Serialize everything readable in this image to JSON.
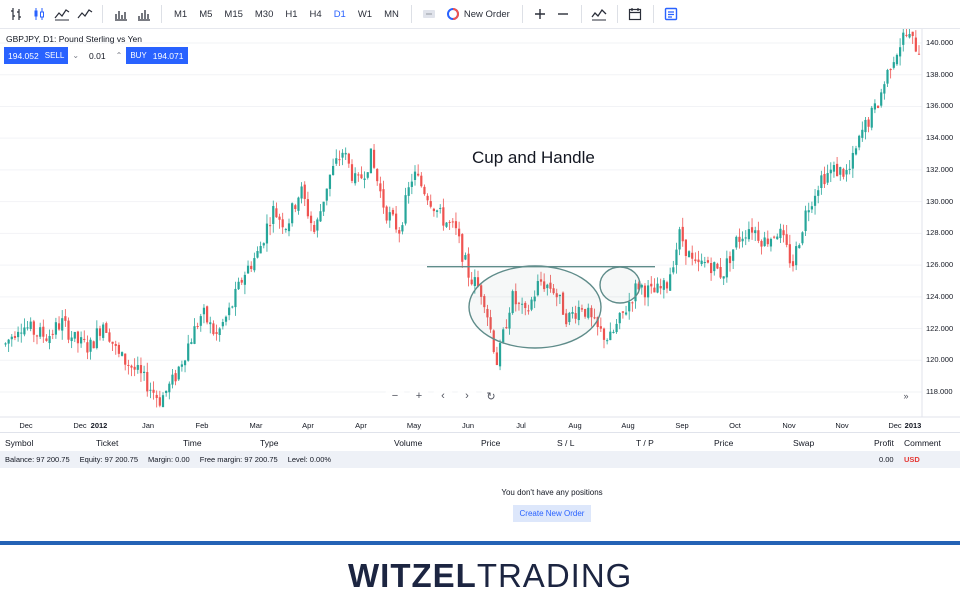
{
  "toolbar": {
    "timeframes": [
      "M1",
      "M5",
      "M15",
      "M30",
      "H1",
      "H4",
      "D1",
      "W1",
      "MN"
    ],
    "active_timeframe": "D1",
    "new_order_label": "New Order"
  },
  "symbol": {
    "title": "GBPJPY, D1: Pound Sterling vs Yen",
    "sell_price": "194.052",
    "sell_label": "SELL",
    "quantity": "0.01",
    "buy_label": "BUY",
    "buy_price": "194.071"
  },
  "chart_data": {
    "type": "candlestick",
    "annotation": "Cup and Handle",
    "price_axis": [
      "140.000",
      "138.000",
      "136.000",
      "134.000",
      "132.000",
      "130.000",
      "128.000",
      "126.000",
      "124.000",
      "122.000",
      "120.000",
      "118.000"
    ],
    "ylim": [
      117,
      141.5
    ],
    "time_axis": [
      {
        "label": "Dec",
        "bold": false
      },
      {
        "label": "Dec",
        "bold": false
      },
      {
        "label": "2012",
        "bold": true
      },
      {
        "label": "Jan",
        "bold": false
      },
      {
        "label": "Feb",
        "bold": false
      },
      {
        "label": "Mar",
        "bold": false
      },
      {
        "label": "Apr",
        "bold": false
      },
      {
        "label": "Apr",
        "bold": false
      },
      {
        "label": "May",
        "bold": false
      },
      {
        "label": "Jun",
        "bold": false
      },
      {
        "label": "Jul",
        "bold": false
      },
      {
        "label": "Aug",
        "bold": false
      },
      {
        "label": "Aug",
        "bold": false
      },
      {
        "label": "Sep",
        "bold": false
      },
      {
        "label": "Oct",
        "bold": false
      },
      {
        "label": "Nov",
        "bold": false
      },
      {
        "label": "Nov",
        "bold": false
      },
      {
        "label": "Dec",
        "bold": false
      },
      {
        "label": "2013",
        "bold": true
      }
    ],
    "resistance_level": 125.9,
    "up_color": "#26a69a",
    "down_color": "#ef5350",
    "close_path": [
      121.0,
      122.3,
      121.8,
      121.5,
      122.4,
      121.2,
      120.8,
      122.5,
      120.3,
      119.6,
      118.6,
      117.5,
      118.8,
      121.0,
      123.0,
      121.5,
      123.2,
      125.5,
      126.8,
      129.5,
      128.5,
      130.8,
      128.0,
      131.5,
      133.2,
      131.0,
      132.8,
      129.5,
      128.2,
      131.8,
      130.5,
      129.0,
      128.2,
      125.3,
      124.2,
      119.8,
      124.0,
      122.8,
      125.0,
      124.5,
      122.6,
      123.5,
      122.0,
      121.3,
      123.0,
      124.8,
      124.2,
      124.6,
      128.0,
      125.8,
      126.2,
      125.4,
      127.5,
      128.5,
      127.5,
      128.2,
      126.0,
      129.5,
      131.5,
      132.0,
      131.8,
      134.5,
      136.0,
      138.8,
      140.6,
      139.6
    ]
  },
  "chart_nav": {
    "zoom_out": "−",
    "zoom_in": "+",
    "scroll_left": "‹",
    "scroll_right": "›",
    "reset": "↻",
    "goto_live": "»"
  },
  "positions": {
    "columns": [
      "Symbol",
      "Ticket",
      "Time",
      "Type",
      "Volume",
      "Price",
      "S / L",
      "T / P",
      "Price",
      "Swap",
      "Profit",
      "Comment"
    ],
    "balance": "Balance: 97 200.75",
    "equity": "Equity: 97 200.75",
    "margin": "Margin: 0.00",
    "free_margin": "Free margin: 97 200.75",
    "level": "Level: 0.00%",
    "total": "0.00",
    "currency": "USD",
    "empty_message": "You don't have any positions",
    "create_order_label": "Create New Order"
  },
  "branding": {
    "logo_bold": "WITZEL",
    "logo_regular": "TRADING",
    "accent_color": "#2462b5"
  }
}
